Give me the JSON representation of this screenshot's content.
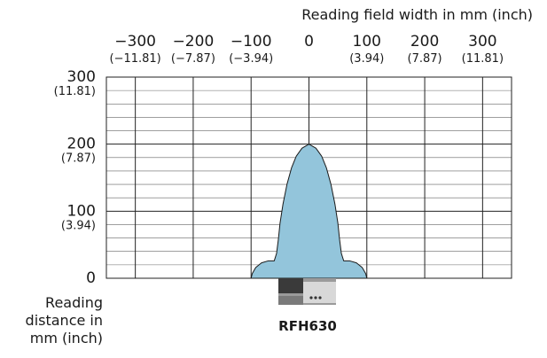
{
  "chart_data": {
    "type": "area",
    "title": "",
    "x_axis": {
      "label": "Reading field width in mm (inch)",
      "range": [
        -350,
        350
      ],
      "ticks": [
        {
          "mm": -300,
          "mm_label": "−300",
          "inch_label": "(−11.81)"
        },
        {
          "mm": -200,
          "mm_label": "−200",
          "inch_label": "(−7.87)"
        },
        {
          "mm": -100,
          "mm_label": "−100",
          "inch_label": "(−3.94)"
        },
        {
          "mm": 0,
          "mm_label": "0",
          "inch_label": ""
        },
        {
          "mm": 100,
          "mm_label": "100",
          "inch_label": "(3.94)"
        },
        {
          "mm": 200,
          "mm_label": "200",
          "inch_label": "(7.87)"
        },
        {
          "mm": 300,
          "mm_label": "300",
          "inch_label": "(11.81)"
        }
      ]
    },
    "y_axis": {
      "label_lines": [
        "Reading",
        "distance in",
        "mm (inch)"
      ],
      "range": [
        0,
        300
      ],
      "ticks": [
        {
          "mm": 0,
          "mm_label": "0",
          "inch_label": ""
        },
        {
          "mm": 100,
          "mm_label": "100",
          "inch_label": "(3.94)"
        },
        {
          "mm": 200,
          "mm_label": "200",
          "inch_label": "(7.87)"
        },
        {
          "mm": 300,
          "mm_label": "300",
          "inch_label": "(11.81)"
        }
      ],
      "minor_step": 20
    },
    "grid": true,
    "reading_field": {
      "color": "#93c5db",
      "outline": [
        [
          -100,
          0
        ],
        [
          -98,
          7
        ],
        [
          -92,
          16
        ],
        [
          -82,
          23
        ],
        [
          -70,
          26
        ],
        [
          -60,
          26
        ],
        [
          -56,
          37
        ],
        [
          -53,
          57
        ],
        [
          -50,
          82
        ],
        [
          -45,
          110
        ],
        [
          -38,
          140
        ],
        [
          -30,
          165
        ],
        [
          -22,
          182
        ],
        [
          -12,
          194
        ],
        [
          0,
          200
        ],
        [
          12,
          194
        ],
        [
          22,
          182
        ],
        [
          30,
          165
        ],
        [
          38,
          140
        ],
        [
          45,
          110
        ],
        [
          50,
          82
        ],
        [
          53,
          57
        ],
        [
          56,
          37
        ],
        [
          60,
          26
        ],
        [
          70,
          26
        ],
        [
          82,
          23
        ],
        [
          92,
          16
        ],
        [
          98,
          7
        ],
        [
          100,
          0
        ]
      ]
    },
    "device": {
      "label": "RFH630"
    }
  }
}
